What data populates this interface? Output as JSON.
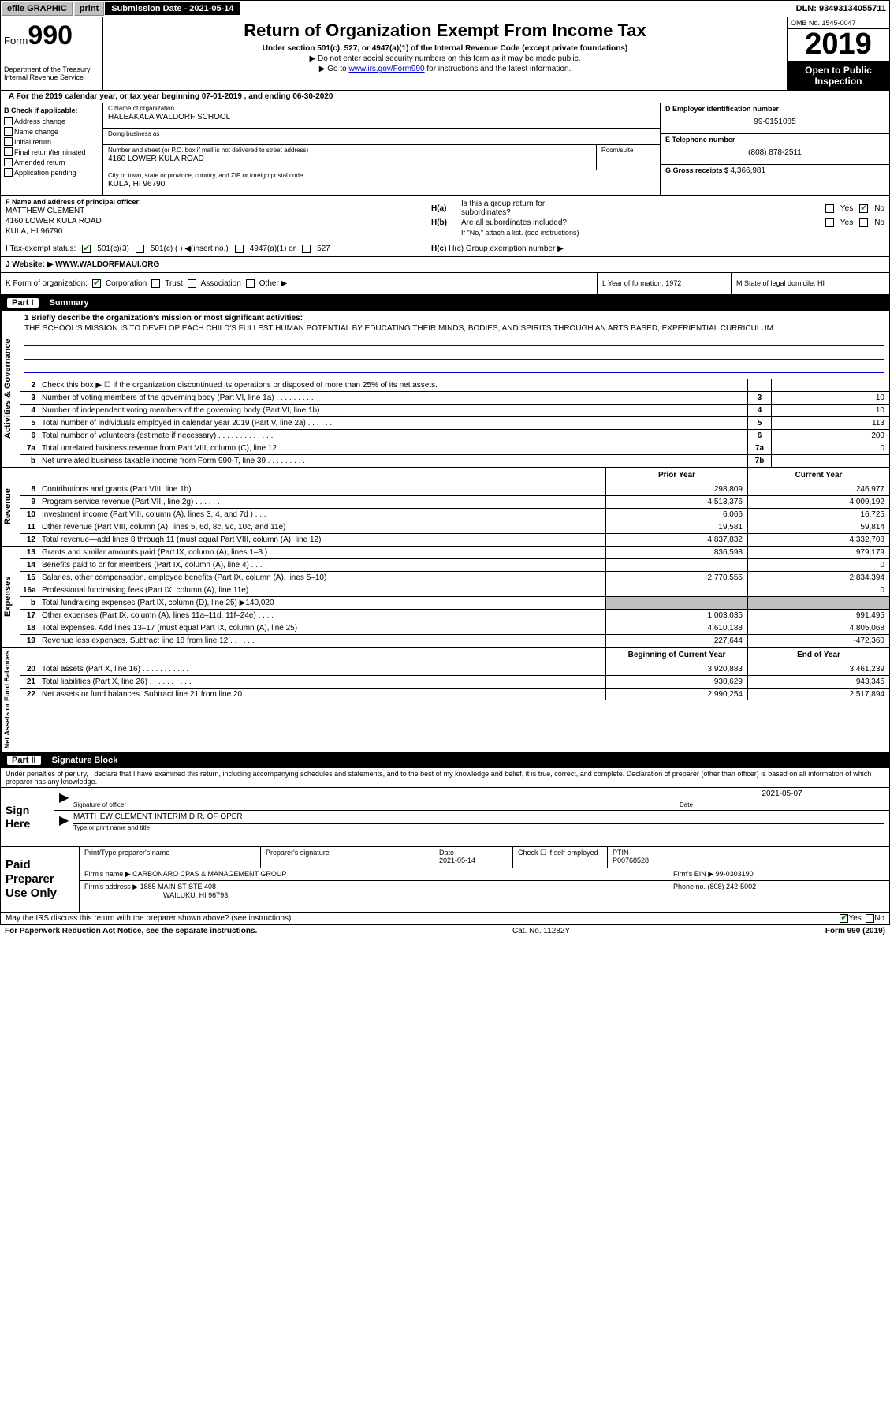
{
  "topbar": {
    "efile": "efile GRAPHIC",
    "print": "print",
    "submission": "Submission Date - 2021-05-14",
    "dln": "DLN: 93493134055711"
  },
  "header": {
    "form": "Form",
    "form_no": "990",
    "dept1": "Department of the Treasury",
    "dept2": "Internal Revenue Service",
    "title": "Return of Organization Exempt From Income Tax",
    "subtitle": "Under section 501(c), 527, or 4947(a)(1) of the Internal Revenue Code (except private foundations)",
    "arrow1": "▶ Do not enter social security numbers on this form as it may be made public.",
    "arrow2_pre": "▶ Go to ",
    "arrow2_link": "www.irs.gov/Form990",
    "arrow2_post": " for instructions and the latest information.",
    "omb": "OMB No. 1545-0047",
    "year": "2019",
    "open1": "Open to Public",
    "open2": "Inspection"
  },
  "line_a": "A For the 2019 calendar year, or tax year beginning 07-01-2019     , and ending 06-30-2020",
  "section_b": {
    "label": "B Check if applicable:",
    "opts": [
      "Address change",
      "Name change",
      "Initial return",
      "Final return/terminated",
      "Amended return",
      "Application pending"
    ]
  },
  "section_c": {
    "name_lab": "C Name of organization",
    "name": "HALEAKALA WALDORF SCHOOL",
    "dba_lab": "Doing business as",
    "dba": "",
    "addr_lab": "Number and street (or P.O. box if mail is not delivered to street address)",
    "addr": "4160 LOWER KULA ROAD",
    "room_lab": "Room/suite",
    "city_lab": "City or town, state or province, country, and ZIP or foreign postal code",
    "city": "KULA, HI  96790"
  },
  "section_d": {
    "lab": "D Employer identification number",
    "val": "99-0151085"
  },
  "section_e": {
    "lab": "E Telephone number",
    "val": "(808) 878-2511"
  },
  "section_g": {
    "lab": "G Gross receipts $ ",
    "val": "4,366,981"
  },
  "section_f": {
    "lab": "F  Name and address of principal officer:",
    "name": "MATTHEW CLEMENT",
    "addr": "4160 LOWER KULA ROAD",
    "city": "KULA, HI  96790"
  },
  "section_h": {
    "ha": "H(a)  Is this a group return for",
    "ha2": "subordinates?",
    "hb": "H(b)  Are all subordinates included?",
    "hb_note": "If \"No,\" attach a list. (see instructions)",
    "hc": "H(c)  Group exemption number ▶",
    "yes": "Yes",
    "no": "No"
  },
  "tax_exempt": {
    "lab": "I    Tax-exempt status:",
    "o1": "501(c)(3)",
    "o2": "501(c) (  ) ◀(insert no.)",
    "o3": "4947(a)(1) or",
    "o4": "527"
  },
  "website": {
    "lab": "J   Website: ▶  ",
    "val": "WWW.WALDORFMAUI.ORG"
  },
  "section_k": {
    "lab": "K Form of organization:",
    "corp": "Corporation",
    "trust": "Trust",
    "assoc": "Association",
    "other": "Other ▶"
  },
  "section_l": {
    "text": "L Year of formation: 1972"
  },
  "section_m": {
    "text": "M State of legal domicile: HI"
  },
  "part1": {
    "no": "Part I",
    "title": "Summary"
  },
  "mission": {
    "line1_lab": "1  Briefly describe the organization's mission or most significant activities:",
    "text": "THE SCHOOL'S MISSION IS TO DEVELOP EACH CHILD'S FULLEST HUMAN POTENTIAL BY EDUCATING THEIR MINDS, BODIES, AND SPIRITS THROUGH AN ARTS BASED, EXPERIENTIAL CURRICULUM."
  },
  "gov_rows": [
    {
      "n": "2",
      "text": "Check this box ▶ ☐  if the organization discontinued its operations or disposed of more than 25% of its net assets.",
      "k": "",
      "v": ""
    },
    {
      "n": "3",
      "text": "Number of voting members of the governing body (Part VI, line 1a)   .    .    .    .    .    .    .    .    .",
      "k": "3",
      "v": "10"
    },
    {
      "n": "4",
      "text": "Number of independent voting members of the governing body (Part VI, line 1b)   .    .    .    .    .",
      "k": "4",
      "v": "10"
    },
    {
      "n": "5",
      "text": "Total number of individuals employed in calendar year 2019 (Part V, line 2a)   .    .    .    .    .    .",
      "k": "5",
      "v": "113"
    },
    {
      "n": "6",
      "text": "Total number of volunteers (estimate if necessary)    .    .    .    .    .    .    .    .    .    .    .    .    .",
      "k": "6",
      "v": "200"
    },
    {
      "n": "7a",
      "text": "Total unrelated business revenue from Part VIII, column (C), line 12   .    .    .    .    .    .    .    .",
      "k": "7a",
      "v": "0"
    },
    {
      "n": "b",
      "text": "Net unrelated business taxable income from Form 990-T, line 39    .    .    .    .    .    .    .    .    .",
      "k": "7b",
      "v": ""
    }
  ],
  "col_headers": {
    "prior": "Prior Year",
    "current": "Current Year"
  },
  "revenue_rows": [
    {
      "n": "8",
      "text": "Contributions and grants (Part VIII, line 1h)   .    .    .    .    .    .",
      "p": "298,809",
      "c": "246,977"
    },
    {
      "n": "9",
      "text": "Program service revenue (Part VIII, line 2g)   .    .    .    .    .    .",
      "p": "4,513,376",
      "c": "4,009,192"
    },
    {
      "n": "10",
      "text": "Investment income (Part VIII, column (A), lines 3, 4, and 7d )   .    .    .",
      "p": "6,066",
      "c": "16,725"
    },
    {
      "n": "11",
      "text": "Other revenue (Part VIII, column (A), lines 5, 6d, 8c, 9c, 10c, and 11e)",
      "p": "19,581",
      "c": "59,814"
    },
    {
      "n": "12",
      "text": "Total revenue—add lines 8 through 11 (must equal Part VIII, column (A), line 12)",
      "p": "4,837,832",
      "c": "4,332,708"
    }
  ],
  "expense_rows": [
    {
      "n": "13",
      "text": "Grants and similar amounts paid (Part IX, column (A), lines 1–3 )   .    .    .",
      "p": "836,598",
      "c": "979,179"
    },
    {
      "n": "14",
      "text": "Benefits paid to or for members (Part IX, column (A), line 4)   .    .    .",
      "p": "",
      "c": "0"
    },
    {
      "n": "15",
      "text": "Salaries, other compensation, employee benefits (Part IX, column (A), lines 5–10)",
      "p": "2,770,555",
      "c": "2,834,394"
    },
    {
      "n": "16a",
      "text": "Professional fundraising fees (Part IX, column (A), line 11e)   .    .    .    .",
      "p": "",
      "c": "0"
    },
    {
      "n": "b",
      "text": "Total fundraising expenses (Part IX, column (D), line 25) ▶140,020",
      "p": "SHADE",
      "c": "SHADE"
    },
    {
      "n": "17",
      "text": "Other expenses (Part IX, column (A), lines 11a–11d, 11f–24e)   .    .    .    .",
      "p": "1,003,035",
      "c": "991,495"
    },
    {
      "n": "18",
      "text": "Total expenses. Add lines 13–17 (must equal Part IX, column (A), line 25)",
      "p": "4,610,188",
      "c": "4,805,068"
    },
    {
      "n": "19",
      "text": "Revenue less expenses. Subtract line 18 from line 12   .    .    .    .    .    .",
      "p": "227,644",
      "c": "-472,360"
    }
  ],
  "na_headers": {
    "begin": "Beginning of Current Year",
    "end": "End of Year"
  },
  "na_rows": [
    {
      "n": "20",
      "text": "Total assets (Part X, line 16)   .    .    .    .    .    .    .    .    .    .    .",
      "p": "3,920,883",
      "c": "3,461,239"
    },
    {
      "n": "21",
      "text": "Total liabilities (Part X, line 26)   .    .    .    .    .    .    .    .    .    .",
      "p": "930,629",
      "c": "943,345"
    },
    {
      "n": "22",
      "text": "Net assets or fund balances. Subtract line 21 from line 20   .    .    .    .",
      "p": "2,990,254",
      "c": "2,517,894"
    }
  ],
  "side_labels": {
    "gov": "Activities & Governance",
    "rev": "Revenue",
    "exp": "Expenses",
    "na": "Net Assets or Fund Balances"
  },
  "part2": {
    "no": "Part II",
    "title": "Signature Block"
  },
  "declare": "Under penalties of perjury, I declare that I have examined this return, including accompanying schedules and statements, and to the best of my knowledge and belief, it is true, correct, and complete. Declaration of preparer (other than officer) is based on all information of which preparer has any knowledge.",
  "sign": {
    "title": "Sign Here",
    "sig_lab": "Signature of officer",
    "date_lab": "Date",
    "date_val": "2021-05-07",
    "name": "MATTHEW CLEMENT  INTERIM DIR. OF OPER",
    "name_lab": "Type or print name and title"
  },
  "prep": {
    "title": "Paid Preparer Use Only",
    "r1": {
      "c1_lab": "Print/Type preparer's name",
      "c2_lab": "Preparer's signature",
      "c3_lab": "Date",
      "c3_val": "2021-05-14",
      "c4_lab": "Check ☐  if self-employed",
      "c5_lab": "PTIN",
      "c5_val": "P00768528"
    },
    "r2": {
      "lab": "Firm's name       ▶ ",
      "val": "CARBONARO CPAS & MANAGEMENT GROUP",
      "ein_lab": "Firm's EIN ▶ ",
      "ein": "99-0303190"
    },
    "r3": {
      "lab": "Firm's address  ▶ ",
      "addr1": "1885 MAIN ST STE 408",
      "addr2": "WAILUKU, HI  96793",
      "phone_lab": "Phone no. ",
      "phone": "(808) 242-5002"
    }
  },
  "discuss": {
    "text": "May the IRS discuss this return with the preparer shown above? (see instructions)    .    .    .    .    .    .    .    .    .    .    .",
    "yes": "Yes",
    "no": "No"
  },
  "bottom": {
    "left": "For Paperwork Reduction Act Notice, see the separate instructions.",
    "mid": "Cat. No. 11282Y",
    "right": "Form 990 (2019)"
  }
}
